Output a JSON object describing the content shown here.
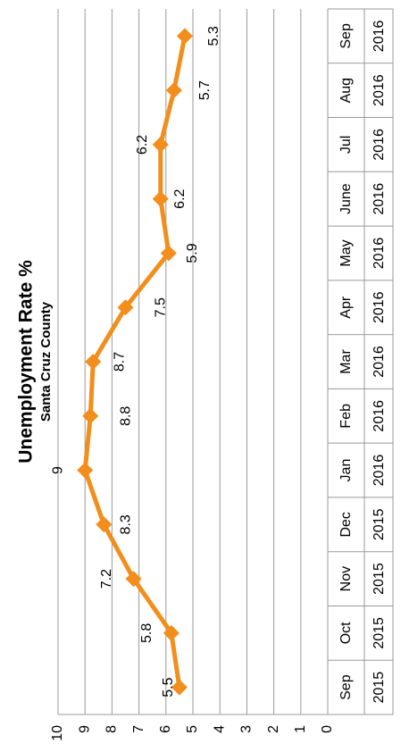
{
  "chart_data": {
    "type": "line",
    "title": "Unemployment Rate %",
    "subtitle": "Santa Cruz County",
    "categories": [
      "Sep",
      "Oct",
      "Nov",
      "Dec",
      "Jan",
      "Feb",
      "Mar",
      "Apr",
      "May",
      "June",
      "Jul",
      "Aug",
      "Sep"
    ],
    "category_years": [
      "2015",
      "2015",
      "2015",
      "2015",
      "2016",
      "2016",
      "2016",
      "2016",
      "2016",
      "2016",
      "2016",
      "2016",
      "2016"
    ],
    "series": [
      {
        "name": "Unemployment Rate %",
        "color": "#f28e1c",
        "values": [
          5.5,
          5.8,
          7.2,
          8.3,
          9,
          8.8,
          8.7,
          7.5,
          5.9,
          6.2,
          6.2,
          5.7,
          5.3
        ]
      }
    ],
    "ylim": [
      0,
      10
    ],
    "yticks": [
      0,
      1,
      2,
      3,
      4,
      5,
      6,
      7,
      8,
      9,
      10
    ],
    "grid": true
  }
}
